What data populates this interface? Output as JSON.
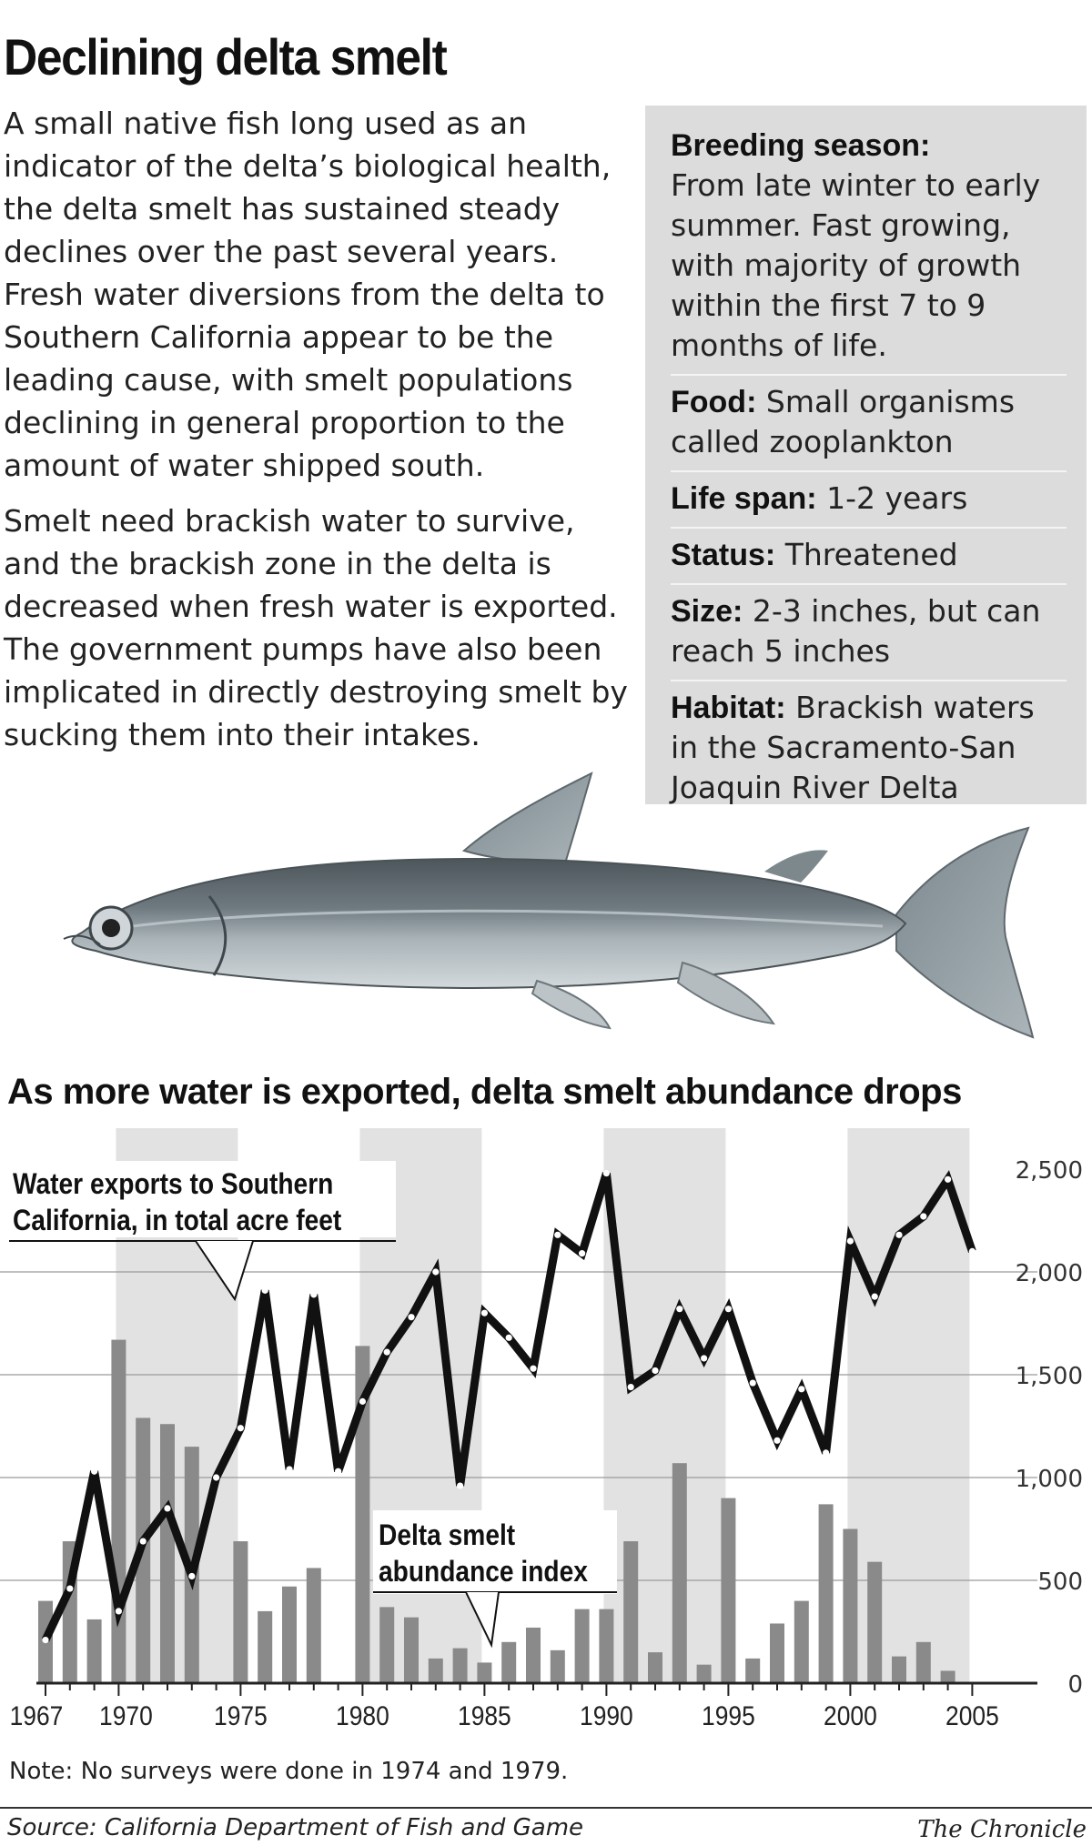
{
  "header": {
    "title": "Declining delta smelt"
  },
  "intro": {
    "paragraphs": [
      "A small native fish long used as an indicator of the delta’s biological health, the delta smelt has sustained steady declines over the past several years. Fresh water diversions from the delta to Southern California appear to be the leading cause, with smelt populations declining in general proportion to the amount of water shipped south.",
      "Smelt need brackish water to survive, and the brackish zone in the delta is decreased when fresh water is exported. The government pumps have also been implicated in directly destroying smelt by sucking them into their intakes."
    ]
  },
  "facts": [
    {
      "label": "Breeding season:",
      "text": "From late winter to early summer. Fast growing, with majority of growth within the first 7 to 9 months of life."
    },
    {
      "label": "Food:",
      "text": "Small organisms called zooplankton"
    },
    {
      "label": "Life span:",
      "text": "1-2 years"
    },
    {
      "label": "Status:",
      "text": "Threatened"
    },
    {
      "label": "Size:",
      "text": "2-3 inches, but can reach 5 inches"
    },
    {
      "label": "Habitat:",
      "text": "Brackish waters in the Sacramento-San Joaquin River Delta"
    }
  ],
  "chart_data": {
    "type": "bar",
    "title": "As more water is exported, delta smelt abundance drops",
    "x_tick_labels": [
      "1967",
      "1970",
      "1975",
      "1980",
      "1985",
      "1990",
      "1995",
      "2000",
      "2005"
    ],
    "y_tick_labels": [
      "2,500",
      "2,000",
      "1,500",
      "1,000",
      "500",
      "0"
    ],
    "ylim": [
      0,
      2500
    ],
    "years": [
      1967,
      1968,
      1969,
      1970,
      1971,
      1972,
      1973,
      1974,
      1975,
      1976,
      1977,
      1978,
      1979,
      1980,
      1981,
      1982,
      1983,
      1984,
      1985,
      1986,
      1987,
      1988,
      1989,
      1990,
      1991,
      1992,
      1993,
      1994,
      1995,
      1996,
      1997,
      1998,
      1999,
      2000,
      2001,
      2002,
      2003,
      2004,
      2005
    ],
    "shaded_bands": [
      [
        1970,
        1975
      ],
      [
        1980,
        1985
      ],
      [
        1990,
        1995
      ],
      [
        2000,
        2005
      ]
    ],
    "series": [
      {
        "name": "Water exports to Southern California, in total acre feet",
        "type": "line",
        "values": [
          210,
          460,
          1030,
          350,
          690,
          850,
          520,
          1000,
          1240,
          1910,
          1040,
          1890,
          1030,
          1370,
          1610,
          1780,
          2000,
          960,
          1800,
          1680,
          1530,
          2180,
          2090,
          2480,
          1440,
          1520,
          1820,
          1580,
          1820,
          1460,
          1180,
          1430,
          1120,
          2150,
          1880,
          2180,
          2270,
          2450,
          2100
        ]
      },
      {
        "name": "Delta smelt abundance index",
        "type": "bar",
        "values": [
          400,
          690,
          310,
          1670,
          1290,
          1260,
          1150,
          null,
          690,
          350,
          470,
          560,
          null,
          1640,
          370,
          320,
          120,
          170,
          100,
          200,
          270,
          160,
          360,
          360,
          690,
          150,
          1070,
          90,
          900,
          120,
          290,
          400,
          870,
          750,
          590,
          130,
          200,
          60,
          null
        ]
      }
    ],
    "annotations": {
      "water_label_line1": "Water exports to Southern",
      "water_label_line2": "California, in total acre feet",
      "smelt_label_line1": "Delta smelt",
      "smelt_label_line2": "abundance index"
    }
  },
  "note": "Note: No surveys were done in 1974 and 1979.",
  "source": "Source: California Department of Fish and Game",
  "credit": "The Chronicle"
}
